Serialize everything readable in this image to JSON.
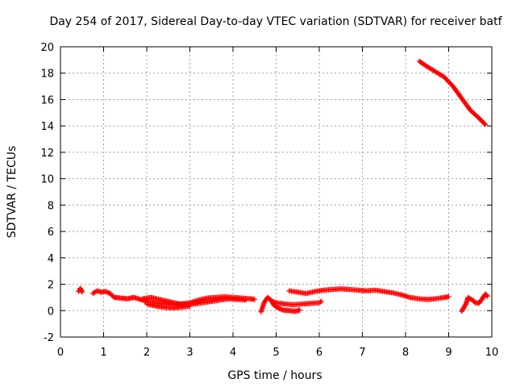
{
  "chart_data": {
    "type": "scatter",
    "title": "Day 254 of 2017, Sidereal Day-to-day VTEC variation (SDTVAR) for receiver batf",
    "xlabel": "GPS time / hours",
    "ylabel": "SDTVAR / TECUs",
    "xlim": [
      0,
      10
    ],
    "ylim": [
      -2,
      20
    ],
    "xticks": [
      "0",
      "1",
      "2",
      "3",
      "4",
      "5",
      "6",
      "7",
      "8",
      "9",
      "10"
    ],
    "yticks": [
      "-2",
      "0",
      "2",
      "4",
      "6",
      "8",
      "10",
      "12",
      "14",
      "16",
      "18",
      "20"
    ],
    "grid": true,
    "marker": "+",
    "series_color": "#ff0000",
    "series": [
      {
        "name": "SDTVAR",
        "segments": [
          [
            [
              0.42,
              1.45
            ],
            [
              0.46,
              1.7
            ],
            [
              0.5,
              1.4
            ]
          ],
          [
            [
              0.75,
              1.3
            ],
            [
              0.85,
              1.5
            ],
            [
              0.95,
              1.4
            ],
            [
              1.05,
              1.45
            ],
            [
              1.15,
              1.3
            ],
            [
              1.25,
              1.0
            ],
            [
              1.4,
              0.95
            ],
            [
              1.55,
              0.9
            ],
            [
              1.7,
              1.0
            ],
            [
              1.85,
              0.85
            ],
            [
              2.0,
              0.7
            ],
            [
              2.2,
              0.6
            ],
            [
              2.4,
              0.5
            ],
            [
              2.6,
              0.45
            ],
            [
              2.8,
              0.5
            ],
            [
              3.0,
              0.6
            ],
            [
              3.2,
              0.8
            ],
            [
              3.4,
              0.95
            ],
            [
              3.6,
              1.0
            ],
            [
              3.8,
              1.05
            ],
            [
              4.0,
              1.0
            ],
            [
              4.2,
              0.95
            ],
            [
              4.4,
              0.9
            ],
            [
              4.5,
              0.85
            ]
          ],
          [
            [
              1.9,
              0.9
            ],
            [
              2.1,
              1.0
            ],
            [
              2.3,
              0.85
            ],
            [
              2.5,
              0.7
            ],
            [
              2.7,
              0.55
            ],
            [
              2.9,
              0.45
            ],
            [
              3.1,
              0.5
            ],
            [
              3.3,
              0.6
            ],
            [
              3.5,
              0.7
            ],
            [
              3.7,
              0.8
            ],
            [
              3.9,
              0.9
            ],
            [
              4.1,
              0.85
            ],
            [
              4.3,
              0.8
            ]
          ],
          [
            [
              2.0,
              0.5
            ],
            [
              2.2,
              0.35
            ],
            [
              2.4,
              0.25
            ],
            [
              2.6,
              0.2
            ],
            [
              2.8,
              0.25
            ],
            [
              3.0,
              0.35
            ]
          ],
          [
            [
              4.65,
              -0.1
            ],
            [
              4.72,
              0.6
            ],
            [
              4.8,
              1.0
            ],
            [
              4.88,
              0.8
            ],
            [
              4.95,
              0.4
            ],
            [
              5.05,
              0.2
            ],
            [
              5.15,
              0.05
            ],
            [
              5.3,
              0.0
            ],
            [
              5.45,
              -0.05
            ],
            [
              5.55,
              0.05
            ]
          ],
          [
            [
              4.9,
              0.7
            ],
            [
              5.0,
              0.6
            ],
            [
              5.2,
              0.5
            ],
            [
              5.4,
              0.45
            ],
            [
              5.6,
              0.5
            ],
            [
              5.8,
              0.55
            ],
            [
              6.0,
              0.6
            ],
            [
              6.05,
              0.7
            ]
          ],
          [
            [
              5.3,
              1.5
            ],
            [
              5.5,
              1.4
            ],
            [
              5.7,
              1.3
            ],
            [
              5.9,
              1.45
            ],
            [
              6.1,
              1.55
            ],
            [
              6.3,
              1.6
            ],
            [
              6.5,
              1.65
            ],
            [
              6.7,
              1.6
            ],
            [
              6.9,
              1.55
            ],
            [
              7.1,
              1.5
            ],
            [
              7.3,
              1.55
            ],
            [
              7.5,
              1.45
            ],
            [
              7.7,
              1.35
            ],
            [
              7.9,
              1.2
            ],
            [
              8.1,
              1.0
            ],
            [
              8.3,
              0.9
            ],
            [
              8.5,
              0.85
            ],
            [
              8.7,
              0.9
            ],
            [
              8.9,
              1.0
            ],
            [
              9.0,
              1.05
            ]
          ],
          [
            [
              9.3,
              -0.05
            ],
            [
              9.4,
              0.5
            ],
            [
              9.45,
              1.0
            ],
            [
              9.55,
              0.8
            ],
            [
              9.62,
              0.6
            ],
            [
              9.7,
              0.55
            ],
            [
              9.8,
              1.0
            ],
            [
              9.85,
              1.25
            ],
            [
              9.9,
              1.1
            ]
          ],
          [
            [
              8.32,
              18.9
            ],
            [
              8.5,
              18.5
            ],
            [
              8.7,
              18.1
            ],
            [
              8.9,
              17.7
            ],
            [
              9.1,
              17.0
            ],
            [
              9.3,
              16.1
            ],
            [
              9.5,
              15.2
            ],
            [
              9.7,
              14.6
            ],
            [
              9.85,
              14.1
            ]
          ]
        ]
      }
    ]
  }
}
